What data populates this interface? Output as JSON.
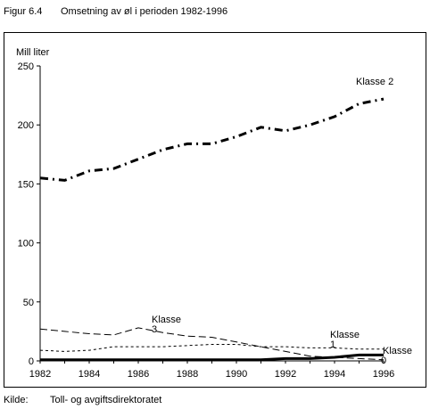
{
  "figure": {
    "number": "Figur 6.4",
    "title": "Omsetning av øl i perioden 1982-1996"
  },
  "source": {
    "label": "Kilde:",
    "text": "Toll- og avgiftsdirektoratet"
  },
  "chart_data": {
    "type": "line",
    "title": "",
    "xlabel": "",
    "ylabel": "Mill liter",
    "xlim": [
      1982,
      1996
    ],
    "ylim": [
      0,
      250
    ],
    "x_ticks": [
      "1982",
      "1984",
      "1986",
      "1988",
      "1990",
      "1992",
      "1994",
      "1996"
    ],
    "y_ticks": [
      "0",
      "50",
      "100",
      "150",
      "200",
      "250"
    ],
    "grid": false,
    "x": [
      1982,
      1983,
      1984,
      1985,
      1986,
      1987,
      1988,
      1989,
      1990,
      1991,
      1992,
      1993,
      1994,
      1995,
      1996
    ],
    "series": [
      {
        "name": "Klasse 2",
        "style": "dash-dot-heavy",
        "values": [
          155,
          153,
          161,
          163,
          171,
          179,
          184,
          184,
          190,
          198,
          195,
          200,
          207,
          218,
          222
        ]
      },
      {
        "name": "Klasse 3",
        "style": "long-dash",
        "values": [
          27,
          25,
          23,
          22,
          28,
          24,
          21,
          20,
          16,
          12,
          8,
          4,
          3,
          2,
          1
        ]
      },
      {
        "name": "Klasse 1",
        "style": "short-dash",
        "values": [
          9,
          8,
          9,
          12,
          12,
          12,
          13,
          14,
          14,
          12,
          12,
          11,
          11,
          10,
          10
        ]
      },
      {
        "name": "Klasse 0",
        "style": "solid-heavy",
        "values": [
          1,
          1,
          1,
          1,
          1,
          1,
          1,
          1,
          1,
          1,
          2,
          2,
          3,
          5,
          5
        ]
      }
    ],
    "annotations": [
      {
        "text": "Klasse 2",
        "series": "Klasse 2"
      },
      {
        "text": "Klasse",
        "series": "Klasse 3"
      },
      {
        "text": "3",
        "series": "Klasse 3"
      },
      {
        "text": "Klasse",
        "series": "Klasse 1"
      },
      {
        "text": "1",
        "series": "Klasse 1"
      },
      {
        "text": "Klasse",
        "series": "Klasse 0"
      },
      {
        "text": "0",
        "series": "Klasse 0"
      }
    ]
  }
}
